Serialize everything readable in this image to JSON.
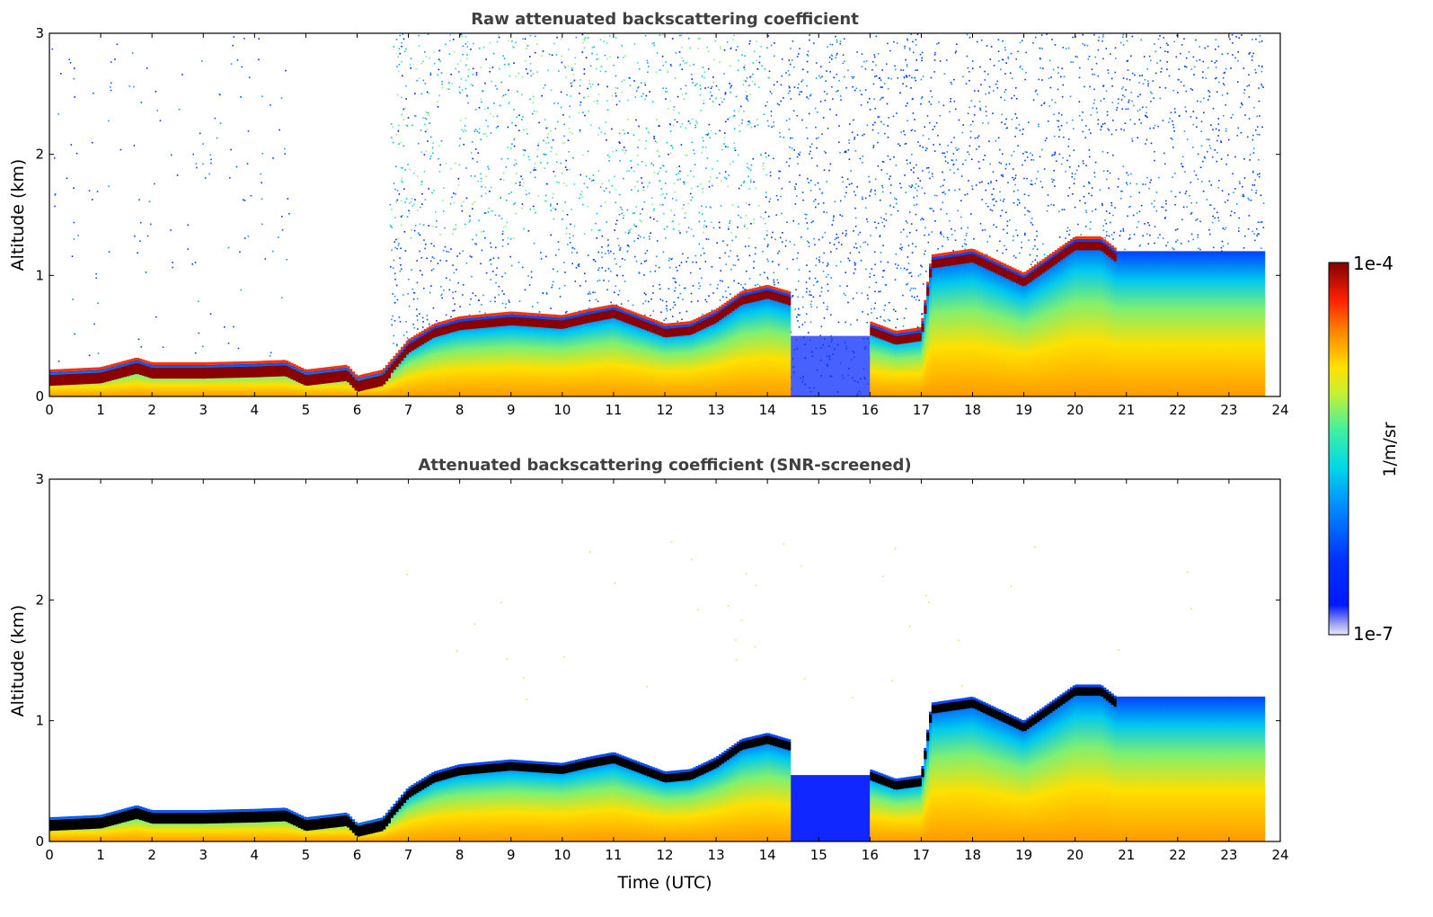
{
  "colors": {
    "frame": "#000000",
    "title": "#404040",
    "text": "#000000"
  },
  "chart_data": [
    {
      "type": "heatmap",
      "title": "Raw attenuated backscattering coefficient",
      "xlabel": "",
      "ylabel": "Altitude (km)",
      "xlim": [
        0,
        24
      ],
      "ylim": [
        0,
        3
      ],
      "xticks": [
        0,
        1,
        2,
        3,
        4,
        5,
        6,
        7,
        8,
        9,
        10,
        11,
        12,
        13,
        14,
        15,
        16,
        17,
        18,
        19,
        20,
        21,
        22,
        23,
        24
      ],
      "yticks": [
        0,
        1,
        2,
        3
      ],
      "colorscale": "jet (log)",
      "data_coverage_end_utc": 23.67,
      "noise_field": "sparse low-level noise 0–6.6 UTC, dense noise 6.6–23.7 UTC up to 3 km",
      "layers": [
        {
          "name": "aerosol layer top (km) vs time (UTC)",
          "t": [
            0,
            1,
            1.7,
            2,
            3,
            4,
            4.6,
            5,
            5.8,
            6,
            6.5,
            7,
            7.5,
            8,
            9,
            10,
            10.5,
            11,
            12,
            12.5,
            13,
            13.5,
            14,
            14.4,
            16,
            16.5,
            17,
            17.2,
            18,
            19,
            20,
            20.5,
            20.8
          ],
          "z": [
            0.2,
            0.22,
            0.3,
            0.26,
            0.26,
            0.27,
            0.28,
            0.2,
            0.24,
            0.15,
            0.2,
            0.45,
            0.58,
            0.64,
            0.68,
            0.65,
            0.7,
            0.74,
            0.58,
            0.6,
            0.7,
            0.85,
            0.9,
            0.85,
            0.6,
            0.52,
            0.55,
            1.15,
            1.2,
            1.0,
            1.3,
            1.3,
            1.2
          ]
        }
      ]
    },
    {
      "type": "heatmap",
      "title": "Attenuated backscattering coefficient (SNR-screened)",
      "xlabel": "Time (UTC)",
      "ylabel": "Altitude (km)",
      "xlim": [
        0,
        24
      ],
      "ylim": [
        0,
        3
      ],
      "xticks": [
        0,
        1,
        2,
        3,
        4,
        5,
        6,
        7,
        8,
        9,
        10,
        11,
        12,
        13,
        14,
        15,
        16,
        17,
        18,
        19,
        20,
        21,
        22,
        23,
        24
      ],
      "yticks": [
        0,
        1,
        2,
        3
      ],
      "colorscale": "jet (log), strongest signal shown black",
      "data_coverage_end_utc": 23.67
    }
  ],
  "colorbar": {
    "label": "1/m/sr",
    "max_label": "1e-4",
    "min_label": "1e-7",
    "scale": "log",
    "range": [
      1e-07,
      0.0001
    ]
  }
}
